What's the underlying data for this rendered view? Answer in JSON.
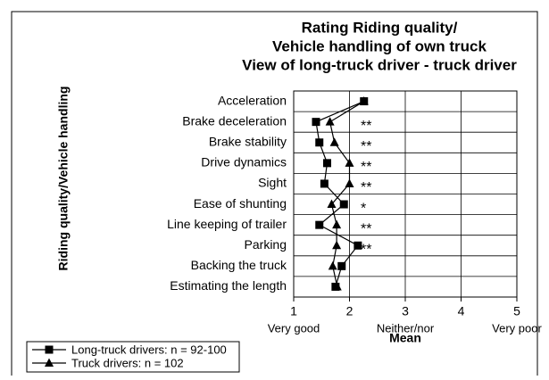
{
  "chart_data": {
    "type": "dotline",
    "title": [
      "Rating Riding quality/",
      "Vehicle handling of own truck",
      "View of long-truck driver - truck driver"
    ],
    "y_label": "Riding quality/Vehicle handling",
    "x_label": "Mean",
    "scale_labels": [
      "Very good",
      "Neither/nor",
      "Very poor"
    ],
    "categories": [
      "Acceleration",
      "Brake deceleration",
      "Brake stability",
      "Drive dynamics",
      "Sight",
      "Ease of shunting",
      "Line keeping of trailer",
      "Parking",
      "Backing the truck",
      "Estimating the length"
    ],
    "annotations": [
      null,
      "**",
      "**",
      "**",
      "**",
      "*",
      "**",
      "**",
      null,
      null
    ],
    "series": [
      {
        "name": "Long-truck drivers: n = 92-100",
        "marker": "square",
        "color": "#000000",
        "values": [
          2.26,
          1.4,
          1.46,
          1.6,
          1.55,
          1.9,
          1.46,
          2.15,
          1.86,
          1.75
        ]
      },
      {
        "name": "Truck drivers: n = 102",
        "marker": "triangle",
        "color": "#000000",
        "values": [
          2.26,
          1.65,
          1.73,
          2.0,
          2.0,
          1.68,
          1.77,
          1.77,
          1.7,
          1.78
        ]
      }
    ],
    "xlim": [
      1,
      5
    ],
    "xticks": [
      1,
      2,
      3,
      4,
      5
    ],
    "grid": true
  }
}
